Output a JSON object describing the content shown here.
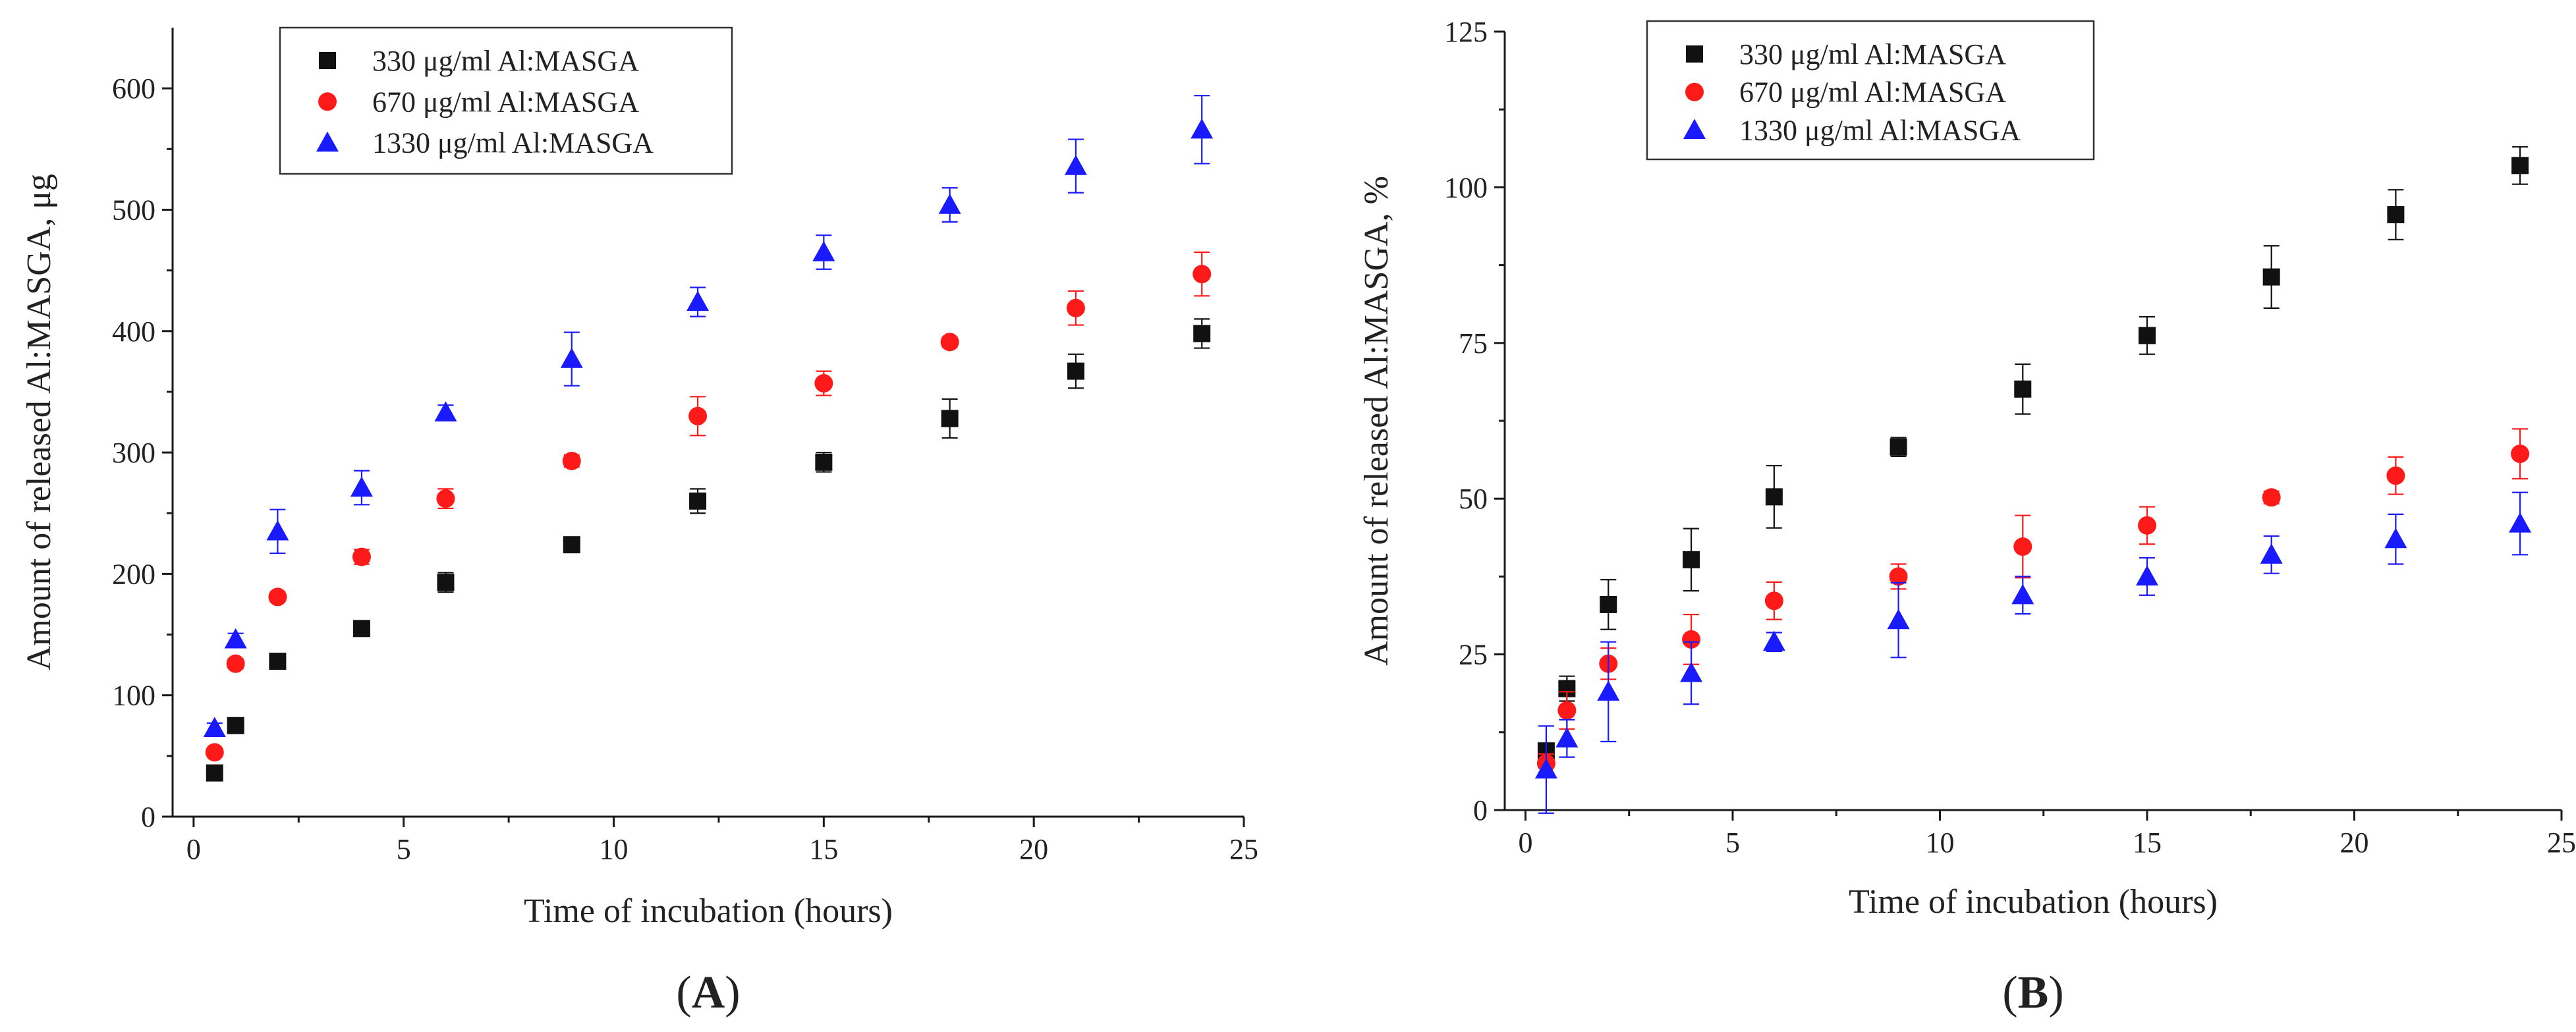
{
  "figure": {
    "colors": {
      "axis": "#1a1a1a",
      "black_series": "#111111",
      "red_series": "#ff1a1a",
      "blue_series": "#1a1aff"
    }
  },
  "chart_data": [
    {
      "type": "scatter",
      "panel_label": "A",
      "panel_label_parts": [
        "(",
        "A",
        ")"
      ],
      "title": "",
      "xlabel": "Time of incubation (hours)",
      "ylabel": "Amount of released Al:MASGA, μg",
      "xlim": [
        -0.5,
        25
      ],
      "ylim": [
        0,
        650
      ],
      "xticks": [
        0,
        5,
        10,
        15,
        20,
        25
      ],
      "yticks": [
        0,
        100,
        200,
        300,
        400,
        500,
        600
      ],
      "x": [
        0.5,
        1,
        2,
        4,
        6,
        9,
        12,
        15,
        18,
        21,
        24
      ],
      "legend_position": "top-left",
      "series": [
        {
          "name": "330 μg/ml Al:MASGA",
          "marker": "square",
          "color": "#111111",
          "values": [
            36,
            75,
            128,
            155,
            193,
            224,
            260,
            292,
            328,
            367,
            398
          ],
          "errors": [
            3,
            3,
            3,
            5,
            8,
            4,
            10,
            8,
            16,
            14,
            12
          ]
        },
        {
          "name": "670 μg/ml  Al:MASGA",
          "marker": "circle",
          "color": "#ff1a1a",
          "values": [
            53,
            126,
            181,
            214,
            262,
            293,
            330,
            357,
            391,
            419,
            447
          ],
          "errors": [
            3,
            4,
            4,
            6,
            8,
            5,
            16,
            10,
            4,
            14,
            18
          ]
        },
        {
          "name": "1330 μg/ml  Al:MASGA",
          "marker": "triangle",
          "color": "#1a1aff",
          "values": [
            73,
            146,
            235,
            271,
            333,
            377,
            424,
            465,
            504,
            536,
            566
          ],
          "errors": [
            4,
            5,
            18,
            14,
            6,
            22,
            12,
            14,
            14,
            22,
            28
          ]
        }
      ]
    },
    {
      "type": "scatter",
      "panel_label": "B",
      "panel_label_parts": [
        "(",
        "B",
        ")"
      ],
      "title": "",
      "xlabel": "Time of incubation (hours)",
      "ylabel": "Amount of released Al:MASGA, %",
      "xlim": [
        -0.5,
        25
      ],
      "ylim": [
        0,
        125
      ],
      "xticks": [
        0,
        5,
        10,
        15,
        20,
        25
      ],
      "yticks": [
        0,
        25,
        50,
        75,
        100,
        125
      ],
      "x": [
        0.5,
        1,
        2,
        4,
        6,
        9,
        12,
        15,
        18,
        21,
        24
      ],
      "legend_position": "top-left",
      "series": [
        {
          "name": "330 μg/ml Al:MASGA",
          "marker": "square",
          "color": "#111111",
          "values": [
            9.5,
            19.5,
            33,
            40.2,
            50.3,
            58.3,
            67.6,
            76.2,
            85.6,
            95.6,
            103.5
          ],
          "errors": [
            1,
            2,
            4,
            5,
            5,
            1.5,
            4,
            3,
            5,
            4,
            3
          ]
        },
        {
          "name": "670 μg/ml  Al:MASGA",
          "marker": "circle",
          "color": "#ff1a1a",
          "values": [
            7.5,
            16,
            23.5,
            27.4,
            33.6,
            37.5,
            42.3,
            45.7,
            50.2,
            53.7,
            57.2
          ],
          "errors": [
            1.5,
            3,
            2.5,
            4,
            3,
            2,
            5,
            3,
            1,
            3,
            4
          ]
        },
        {
          "name": "1330 μg/ml  Al:MASGA",
          "marker": "triangle",
          "color": "#1a1aff",
          "values": [
            6.5,
            11.5,
            19,
            22,
            27,
            30.5,
            34.5,
            37.5,
            41,
            43.5,
            46
          ],
          "errors": [
            7,
            3,
            8,
            5,
            1.5,
            6,
            3,
            3,
            3,
            4,
            5
          ]
        }
      ]
    }
  ]
}
